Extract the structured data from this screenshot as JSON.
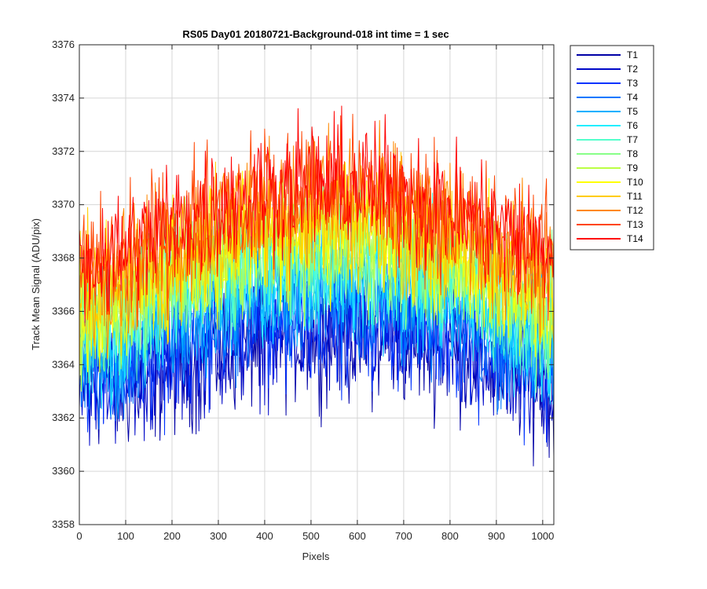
{
  "chart_data": {
    "type": "line",
    "title": "RS05 Day01 20180721-Background-018 int time = 1 sec",
    "xlabel": "Pixels",
    "ylabel": "Track Mean Signal (ADU/pix)",
    "xlim": [
      0,
      1024
    ],
    "ylim": [
      3358,
      3376
    ],
    "xticks": [
      0,
      100,
      200,
      300,
      400,
      500,
      600,
      700,
      800,
      900,
      1000
    ],
    "yticks": [
      3358,
      3360,
      3362,
      3364,
      3366,
      3368,
      3370,
      3372,
      3374,
      3376
    ],
    "grid": true,
    "legend_position": "outside-right",
    "noise_amplitude": 2.0,
    "profile_x": [
      0,
      100,
      200,
      300,
      400,
      500,
      600,
      700,
      800,
      900,
      1024
    ],
    "series": [
      {
        "name": "T1",
        "color": "#0000a6",
        "profile": [
          3363.3,
          3363.2,
          3363.8,
          3364.5,
          3364.9,
          3365.1,
          3365.0,
          3364.9,
          3364.6,
          3363.9,
          3363.0
        ]
      },
      {
        "name": "T2",
        "color": "#0008c8",
        "profile": [
          3363.5,
          3363.5,
          3364.0,
          3364.7,
          3365.1,
          3365.3,
          3365.2,
          3365.1,
          3364.8,
          3364.1,
          3363.2
        ]
      },
      {
        "name": "T3",
        "color": "#0033ff",
        "profile": [
          3363.7,
          3363.8,
          3364.5,
          3365.2,
          3365.6,
          3365.8,
          3365.7,
          3365.6,
          3365.2,
          3364.5,
          3363.5
        ]
      },
      {
        "name": "T4",
        "color": "#0077ff",
        "profile": [
          3364.0,
          3364.3,
          3365.2,
          3366.0,
          3366.4,
          3366.6,
          3366.5,
          3366.3,
          3365.8,
          3365.0,
          3364.0
        ]
      },
      {
        "name": "T5",
        "color": "#00b0ff",
        "profile": [
          3364.3,
          3364.8,
          3365.8,
          3366.6,
          3367.0,
          3367.2,
          3367.1,
          3366.9,
          3366.3,
          3365.5,
          3364.5
        ]
      },
      {
        "name": "T6",
        "color": "#22eeff",
        "profile": [
          3364.7,
          3365.3,
          3366.3,
          3367.1,
          3367.5,
          3367.7,
          3367.6,
          3367.3,
          3366.8,
          3366.0,
          3365.0
        ]
      },
      {
        "name": "T7",
        "color": "#55ffcc",
        "profile": [
          3365.0,
          3365.6,
          3366.7,
          3367.5,
          3367.9,
          3368.1,
          3368.0,
          3367.7,
          3367.2,
          3366.4,
          3365.4
        ]
      },
      {
        "name": "T8",
        "color": "#88ff88",
        "profile": [
          3365.3,
          3366.0,
          3367.1,
          3367.8,
          3368.3,
          3368.5,
          3368.4,
          3368.1,
          3367.5,
          3366.8,
          3365.8
        ]
      },
      {
        "name": "T9",
        "color": "#bbff44",
        "profile": [
          3365.6,
          3366.3,
          3367.4,
          3368.1,
          3368.6,
          3368.8,
          3368.7,
          3368.4,
          3367.8,
          3367.1,
          3366.1
        ]
      },
      {
        "name": "T10",
        "color": "#ffff00",
        "profile": [
          3365.9,
          3366.6,
          3367.7,
          3368.4,
          3368.9,
          3369.1,
          3369.0,
          3368.7,
          3368.1,
          3367.4,
          3366.4
        ]
      },
      {
        "name": "T11",
        "color": "#ffcc00",
        "profile": [
          3366.3,
          3367.0,
          3368.0,
          3368.8,
          3369.3,
          3369.5,
          3369.4,
          3369.1,
          3368.5,
          3367.8,
          3366.8
        ]
      },
      {
        "name": "T12",
        "color": "#ff8800",
        "profile": [
          3367.0,
          3367.6,
          3368.6,
          3369.4,
          3369.9,
          3370.2,
          3370.1,
          3369.8,
          3369.2,
          3368.5,
          3367.5
        ]
      },
      {
        "name": "T13",
        "color": "#ff4400",
        "profile": [
          3367.5,
          3368.0,
          3369.0,
          3369.8,
          3370.3,
          3370.6,
          3370.5,
          3370.2,
          3369.6,
          3368.9,
          3368.0
        ]
      },
      {
        "name": "T14",
        "color": "#ff0000",
        "profile": [
          3367.8,
          3368.3,
          3369.2,
          3370.0,
          3370.5,
          3370.8,
          3370.7,
          3370.4,
          3369.8,
          3369.1,
          3368.2
        ]
      }
    ]
  }
}
